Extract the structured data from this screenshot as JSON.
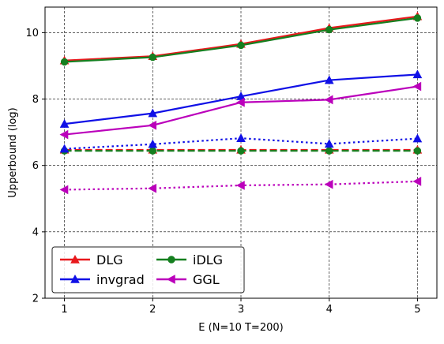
{
  "chart_data": {
    "type": "line",
    "xlabel": "E (N=10 T=200)",
    "ylabel": "Upperbound (log)",
    "x": [
      1,
      2,
      3,
      4,
      5
    ],
    "xticks": [
      1,
      2,
      3,
      4,
      5
    ],
    "yticks": [
      2,
      4,
      6,
      8,
      10
    ],
    "xlim": [
      0.78,
      5.22
    ],
    "ylim": [
      2,
      10.77
    ],
    "grid": true,
    "grid_style": "dashed",
    "legend_position": "bottom-left",
    "legend_columns": 2,
    "series": [
      {
        "name": "DLG",
        "color": "#e8181c",
        "marker": "triangle-up",
        "style": "solid",
        "values": [
          9.16,
          9.29,
          9.66,
          10.14,
          10.49
        ]
      },
      {
        "name": "iDLG",
        "color": "#157f1f",
        "marker": "circle",
        "style": "solid",
        "values": [
          9.12,
          9.26,
          9.62,
          10.09,
          10.44
        ]
      },
      {
        "name": "invgrad",
        "color": "#1010e6",
        "marker": "triangle-up",
        "style": "solid",
        "values": [
          7.25,
          7.57,
          8.08,
          8.57,
          8.74
        ]
      },
      {
        "name": "GGL",
        "color": "#bb00bb",
        "marker": "triangle-left",
        "style": "solid",
        "values": [
          6.93,
          7.21,
          7.9,
          7.98,
          8.38
        ]
      },
      {
        "color": "#e8181c",
        "marker": "triangle-up",
        "style": "dashed",
        "values": [
          6.47,
          6.47,
          6.47,
          6.47,
          6.47
        ]
      },
      {
        "color": "#157f1f",
        "marker": "circle",
        "style": "dashed",
        "values": [
          6.44,
          6.44,
          6.44,
          6.44,
          6.44
        ]
      },
      {
        "color": "#1010e6",
        "marker": "triangle-up",
        "style": "dotted",
        "values": [
          6.5,
          6.64,
          6.82,
          6.65,
          6.81
        ]
      },
      {
        "color": "#bb00bb",
        "marker": "triangle-left",
        "style": "dotted",
        "values": [
          5.27,
          5.31,
          5.4,
          5.43,
          5.52
        ]
      }
    ]
  }
}
